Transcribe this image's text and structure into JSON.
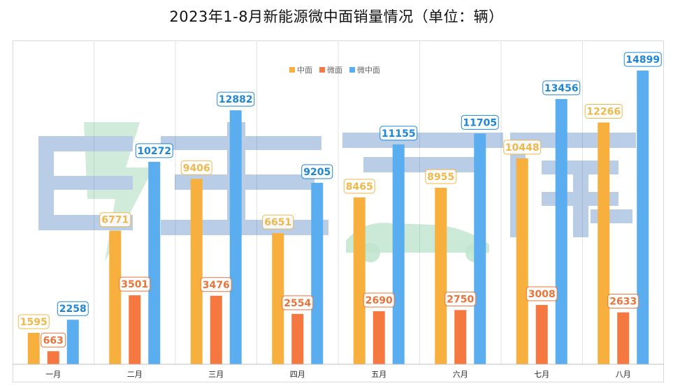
{
  "chart_data": {
    "type": "bar",
    "title": "2023年1-8月新能源微中面销量情况（单位：辆）",
    "categories": [
      "一月",
      "二月",
      "三月",
      "四月",
      "五月",
      "六月",
      "七月",
      "八月"
    ],
    "series": [
      {
        "name": "中面",
        "color": "#F7B03E",
        "label_color": "#F0B84A",
        "values": [
          1595,
          6771,
          9406,
          6651,
          8465,
          8955,
          10448,
          12266
        ]
      },
      {
        "name": "微面",
        "color": "#F4783F",
        "label_color": "#E8743A",
        "values": [
          663,
          3501,
          3476,
          2554,
          2690,
          2750,
          3008,
          2633
        ]
      },
      {
        "name": "微中面",
        "color": "#5AAEEF",
        "label_color": "#1F86D6",
        "values": [
          2258,
          10272,
          12882,
          9205,
          11155,
          11705,
          13456,
          14899
        ]
      }
    ],
    "ylim": [
      0,
      16000
    ],
    "grid": "vertical",
    "legend": "top-center"
  },
  "watermark": {
    "text": "电车资源"
  }
}
